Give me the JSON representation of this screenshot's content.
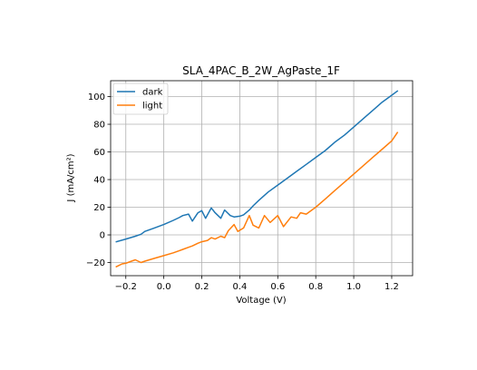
{
  "chart_data": {
    "type": "line",
    "title": "SLA_4PAC_B_2W_AgPaste_1F",
    "xlabel": "Voltage (V)",
    "ylabel": "J (mA/cm²)",
    "xlim": [
      -0.28,
      1.31
    ],
    "ylim": [
      -29.5,
      111.5
    ],
    "xticks": [
      -0.2,
      0.0,
      0.2,
      0.4,
      0.6,
      0.8,
      1.0,
      1.2
    ],
    "xtick_labels": [
      "−0.2",
      "0.0",
      "0.2",
      "0.4",
      "0.6",
      "0.8",
      "1.0",
      "1.2"
    ],
    "yticks": [
      -20,
      0,
      20,
      40,
      60,
      80,
      100
    ],
    "ytick_labels": [
      "−20",
      "0",
      "20",
      "40",
      "60",
      "80",
      "100"
    ],
    "grid": true,
    "legend_position": "top-left",
    "series": [
      {
        "name": "dark",
        "color": "#1f77b4",
        "x": [
          -0.25,
          -0.2,
          -0.15,
          -0.12,
          -0.1,
          -0.05,
          0.0,
          0.05,
          0.08,
          0.1,
          0.13,
          0.15,
          0.18,
          0.2,
          0.22,
          0.25,
          0.27,
          0.3,
          0.32,
          0.35,
          0.37,
          0.4,
          0.42,
          0.45,
          0.47,
          0.5,
          0.55,
          0.6,
          0.65,
          0.7,
          0.75,
          0.8,
          0.85,
          0.9,
          0.95,
          1.0,
          1.05,
          1.1,
          1.15,
          1.2,
          1.23
        ],
        "y": [
          -5,
          -3,
          -1,
          0.5,
          2.5,
          5,
          7.5,
          10.5,
          12.5,
          14,
          15,
          10,
          16,
          17.5,
          12,
          19.5,
          16,
          12,
          18,
          14,
          13,
          13.5,
          14.5,
          18,
          21,
          25,
          31,
          36,
          41,
          46,
          51,
          56,
          61,
          67,
          72,
          78,
          84,
          90,
          96,
          101,
          104
        ]
      },
      {
        "name": "light",
        "color": "#ff7f0e",
        "x": [
          -0.25,
          -0.22,
          -0.2,
          -0.17,
          -0.15,
          -0.12,
          -0.1,
          -0.05,
          0.0,
          0.05,
          0.08,
          0.1,
          0.13,
          0.15,
          0.18,
          0.2,
          0.23,
          0.25,
          0.27,
          0.3,
          0.32,
          0.34,
          0.37,
          0.39,
          0.42,
          0.45,
          0.47,
          0.5,
          0.53,
          0.56,
          0.6,
          0.63,
          0.67,
          0.7,
          0.72,
          0.75,
          0.8,
          0.85,
          0.9,
          0.95,
          1.0,
          1.05,
          1.1,
          1.15,
          1.2,
          1.23
        ],
        "y": [
          -23,
          -21,
          -20.5,
          -19,
          -18,
          -20,
          -19,
          -17,
          -15,
          -13,
          -11.5,
          -10.5,
          -9,
          -8,
          -6,
          -5,
          -4,
          -2,
          -3,
          -1,
          -2,
          3,
          7.5,
          2.5,
          5,
          14,
          7,
          5,
          14,
          9,
          14,
          6,
          13,
          12,
          16,
          15,
          20,
          26,
          32,
          38,
          44,
          50,
          56,
          62,
          68,
          74
        ]
      }
    ]
  }
}
